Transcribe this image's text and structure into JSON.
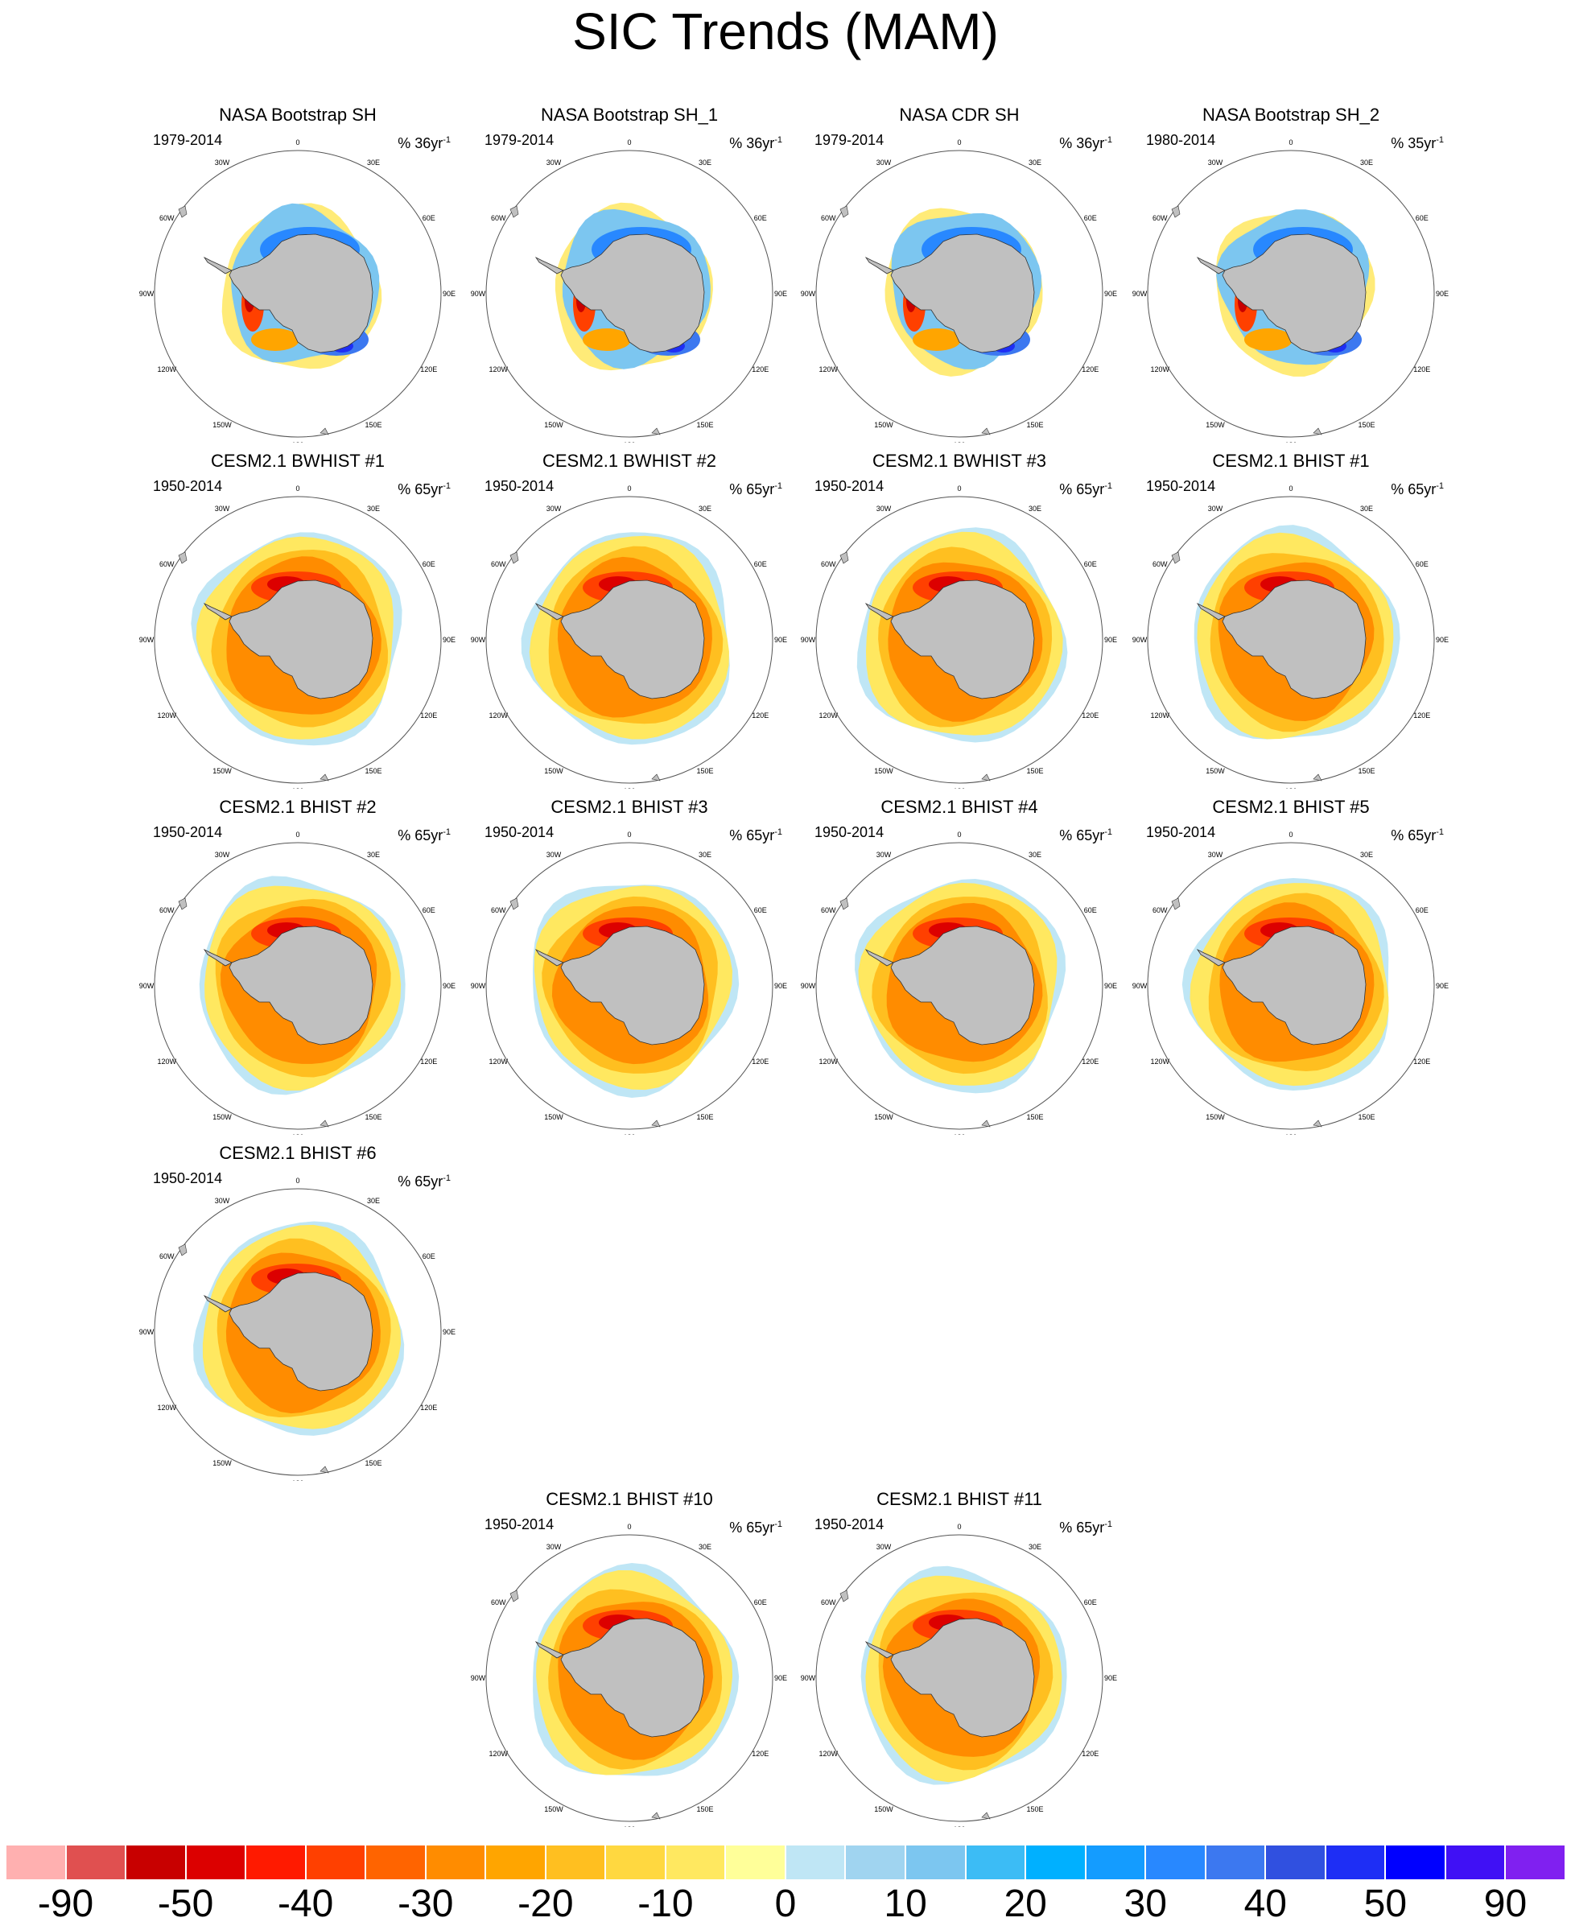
{
  "title": "SIC Trends (MAM)",
  "longitude_labels": [
    "0",
    "30E",
    "60E",
    "90E",
    "120E",
    "150E",
    "180",
    "150W",
    "120W",
    "90W",
    "60W",
    "30W"
  ],
  "panels": [
    {
      "title": "NASA Bootstrap SH",
      "period": "1979-2014",
      "units": "% 36yr",
      "units_exp": "-1",
      "kind": "obs"
    },
    {
      "title": "NASA Bootstrap SH_1",
      "period": "1979-2014",
      "units": "% 36yr",
      "units_exp": "-1",
      "kind": "obs"
    },
    {
      "title": "NASA CDR SH",
      "period": "1979-2014",
      "units": "% 36yr",
      "units_exp": "-1",
      "kind": "obs"
    },
    {
      "title": "NASA Bootstrap SH_2",
      "period": "1980-2014",
      "units": "% 35yr",
      "units_exp": "-1",
      "kind": "obs"
    },
    {
      "title": "CESM2.1 BWHIST #1",
      "period": "1950-2014",
      "units": "% 65yr",
      "units_exp": "-1",
      "kind": "model"
    },
    {
      "title": "CESM2.1 BWHIST #2",
      "period": "1950-2014",
      "units": "% 65yr",
      "units_exp": "-1",
      "kind": "model"
    },
    {
      "title": "CESM2.1 BWHIST #3",
      "period": "1950-2014",
      "units": "% 65yr",
      "units_exp": "-1",
      "kind": "model"
    },
    {
      "title": "CESM2.1 BHIST #1",
      "period": "1950-2014",
      "units": "% 65yr",
      "units_exp": "-1",
      "kind": "model"
    },
    {
      "title": "CESM2.1 BHIST #2",
      "period": "1950-2014",
      "units": "% 65yr",
      "units_exp": "-1",
      "kind": "model"
    },
    {
      "title": "CESM2.1 BHIST #3",
      "period": "1950-2014",
      "units": "% 65yr",
      "units_exp": "-1",
      "kind": "model"
    },
    {
      "title": "CESM2.1 BHIST #4",
      "period": "1950-2014",
      "units": "% 65yr",
      "units_exp": "-1",
      "kind": "model"
    },
    {
      "title": "CESM2.1 BHIST #5",
      "period": "1950-2014",
      "units": "% 65yr",
      "units_exp": "-1",
      "kind": "model"
    },
    {
      "title": "CESM2.1 BHIST #6",
      "period": "1950-2014",
      "units": "% 65yr",
      "units_exp": "-1",
      "kind": "model"
    },
    {
      "title": "CESM2.1 BHIST #10",
      "period": "1950-2014",
      "units": "% 65yr",
      "units_exp": "-1",
      "kind": "model"
    },
    {
      "title": "CESM2.1 BHIST #11",
      "period": "1950-2014",
      "units": "% 65yr",
      "units_exp": "-1",
      "kind": "model"
    }
  ],
  "colorbar": {
    "colors": [
      "#ffb0b0",
      "#e05050",
      "#c80000",
      "#dc0000",
      "#ff1a00",
      "#ff4000",
      "#ff6400",
      "#ff8c00",
      "#ffa500",
      "#ffbf20",
      "#ffd840",
      "#ffe860",
      "#ffff99",
      "#bfe6f5",
      "#a0d4f0",
      "#7cc6f0",
      "#3cbcf5",
      "#00b0ff",
      "#149cff",
      "#2888ff",
      "#3c78f0",
      "#3050e0",
      "#1e2ef5",
      "#0000ff",
      "#4010f5",
      "#8020f0"
    ],
    "labels": [
      "-90",
      "-50",
      "-40",
      "-30",
      "-20",
      "-10",
      "0",
      "10",
      "20",
      "30",
      "40",
      "50",
      "90"
    ]
  }
}
